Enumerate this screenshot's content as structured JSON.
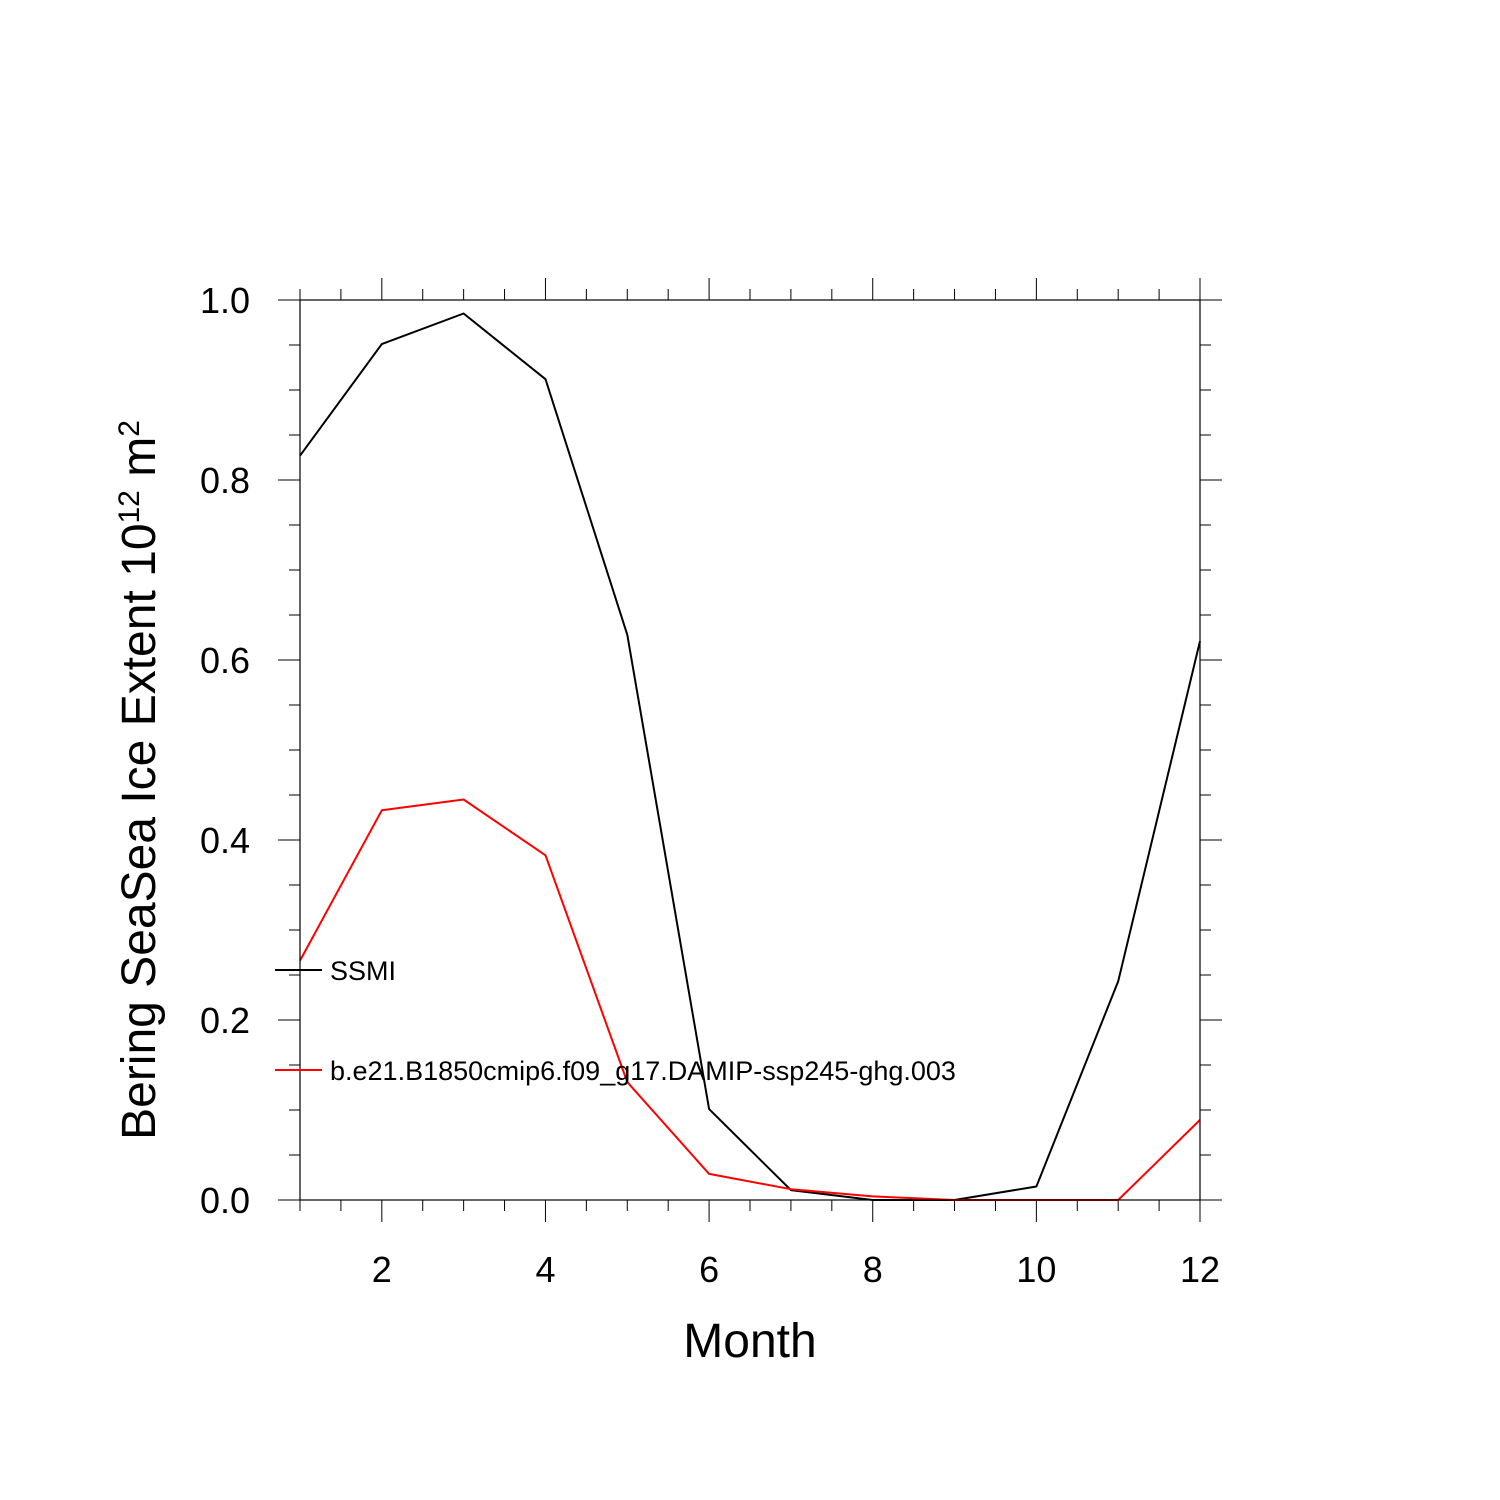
{
  "chart_data": {
    "type": "line",
    "title": "",
    "xlabel": "Month",
    "ylabel_main": "Bering SeaSea Ice Extent 10",
    "ylabel_exponent": "12",
    "ylabel_unit": " m",
    "ylabel_unit_exponent": "2",
    "xlim": [
      1,
      12
    ],
    "ylim": [
      0,
      1.0
    ],
    "x_ticks": [
      2,
      4,
      6,
      8,
      10,
      12
    ],
    "x_tick_labels": [
      "2",
      "4",
      "6",
      "8",
      "10",
      "12"
    ],
    "y_ticks": [
      0,
      0.2,
      0.4,
      0.6,
      0.8,
      1.0
    ],
    "y_tick_labels": [
      "0.0",
      "0.2",
      "0.4",
      "0.6",
      "0.8",
      "1.0"
    ],
    "grid": false,
    "legend_position": "lower-left inside plot",
    "x": [
      1,
      2,
      3,
      4,
      5,
      6,
      7,
      8,
      9,
      10,
      11,
      12
    ],
    "series": [
      {
        "name": "SSMI",
        "color": "#000000",
        "values": [
          0.827,
          0.951,
          0.985,
          0.912,
          0.628,
          0.101,
          0.011,
          0.0,
          0.0,
          0.015,
          0.243,
          0.621
        ]
      },
      {
        "name": "b.e21.B1850cmip6.f09_g17.DAMIP-ssp245-ghg.003",
        "color": "#ff0000",
        "values": [
          0.266,
          0.433,
          0.445,
          0.383,
          0.131,
          0.029,
          0.012,
          0.004,
          0.0,
          0.0,
          0.0,
          0.089
        ]
      }
    ]
  }
}
